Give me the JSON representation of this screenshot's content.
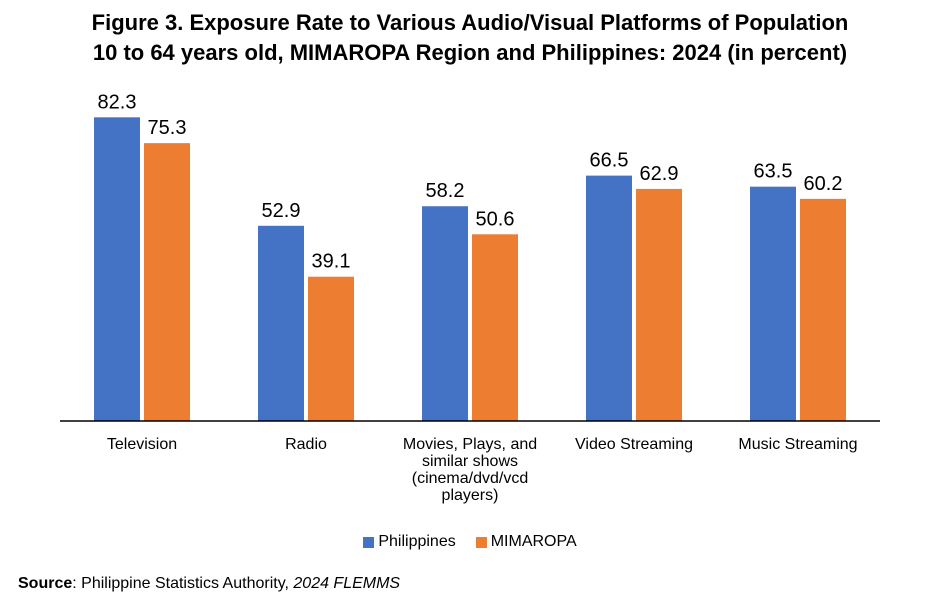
{
  "title_line1": "Figure 3. Exposure Rate to Various Audio/Visual Platforms of Population",
  "title_line2": "10 to 64 years old, MIMAROPA Region and Philippines: 2024 (in percent)",
  "source": {
    "label": "Source",
    "text": ": Philippine Statistics Authority, ",
    "italic": "2024 FLEMMS"
  },
  "chart_data": {
    "type": "bar",
    "categories": [
      [
        "Television"
      ],
      [
        "Radio"
      ],
      [
        "Movies, Plays, and",
        "similar shows",
        "(cinema/dvd/vcd",
        "players)"
      ],
      [
        "Video Streaming"
      ],
      [
        "Music Streaming"
      ]
    ],
    "series": [
      {
        "name": "Philippines",
        "color": "#4472C4",
        "values": [
          82.3,
          52.9,
          58.2,
          66.5,
          63.5
        ]
      },
      {
        "name": "MIMAROPA",
        "color": "#ED7D31",
        "values": [
          75.3,
          39.1,
          50.6,
          62.9,
          60.2
        ]
      }
    ],
    "ylim": [
      0,
      100
    ],
    "grid": false,
    "legend_position": "bottom"
  }
}
